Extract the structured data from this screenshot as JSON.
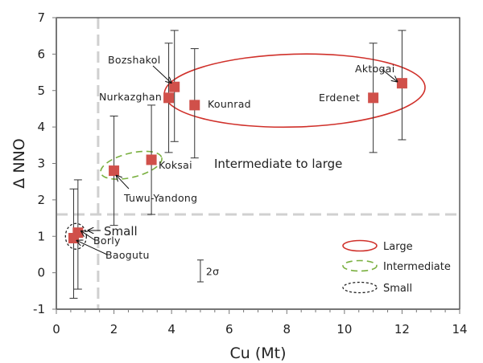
{
  "chart_data": {
    "type": "scatter",
    "title": "",
    "xlabel": "Cu (Mt)",
    "ylabel": "Δ NNO",
    "xlim": [
      0,
      14
    ],
    "ylim": [
      -1,
      7
    ],
    "xticks": [
      "0",
      "2",
      "4",
      "6",
      "8",
      "10",
      "12",
      "14"
    ],
    "yticks": [
      "-1",
      "0",
      "1",
      "2",
      "3",
      "4",
      "5",
      "6",
      "7"
    ],
    "grid": false,
    "reference_lines": {
      "vertical_x": 1.45,
      "horizontal_y": 1.6,
      "color": "#d0d0d0"
    },
    "marker_color": "#d0504a",
    "points": [
      {
        "name": "Baogutu",
        "x": 0.6,
        "y": 0.95,
        "err_low": -0.7,
        "err_high": 2.3
      },
      {
        "name": "Borly",
        "x": 0.75,
        "y": 1.1,
        "err_low": -0.45,
        "err_high": 2.55
      },
      {
        "name": "Tuwu-Yandong",
        "x": 2.0,
        "y": 2.8,
        "err_low": 1.3,
        "err_high": 4.3
      },
      {
        "name": "Koksai",
        "x": 3.3,
        "y": 3.1,
        "err_low": 1.6,
        "err_high": 4.6
      },
      {
        "name": "Nurkazghan",
        "x": 3.9,
        "y": 4.8,
        "err_low": 3.3,
        "err_high": 6.3
      },
      {
        "name": "Bozshakol",
        "x": 4.1,
        "y": 5.1,
        "err_low": 3.6,
        "err_high": 6.65
      },
      {
        "name": "Kounrad",
        "x": 4.8,
        "y": 4.6,
        "err_low": 3.15,
        "err_high": 6.15
      },
      {
        "name": "Erdenet",
        "x": 11.0,
        "y": 4.8,
        "err_low": 3.3,
        "err_high": 6.3
      },
      {
        "name": "Aktogai",
        "x": 12.0,
        "y": 5.2,
        "err_low": 3.65,
        "err_high": 6.65
      }
    ],
    "sigma_bar": {
      "label": "2σ",
      "x": 5.0,
      "y_low": -0.25,
      "y_high": 0.35
    },
    "annotations": [
      {
        "text": "Intermediate to large"
      },
      {
        "text": "Small"
      }
    ],
    "legend": {
      "placement": "bottom-right",
      "entries": [
        {
          "label": "Large",
          "style": "solid",
          "color": "#d0302a"
        },
        {
          "label": "Intermediate",
          "style": "dashed",
          "color": "#7ab040"
        },
        {
          "label": "Small",
          "style": "dotted",
          "color": "#222222"
        }
      ]
    }
  }
}
